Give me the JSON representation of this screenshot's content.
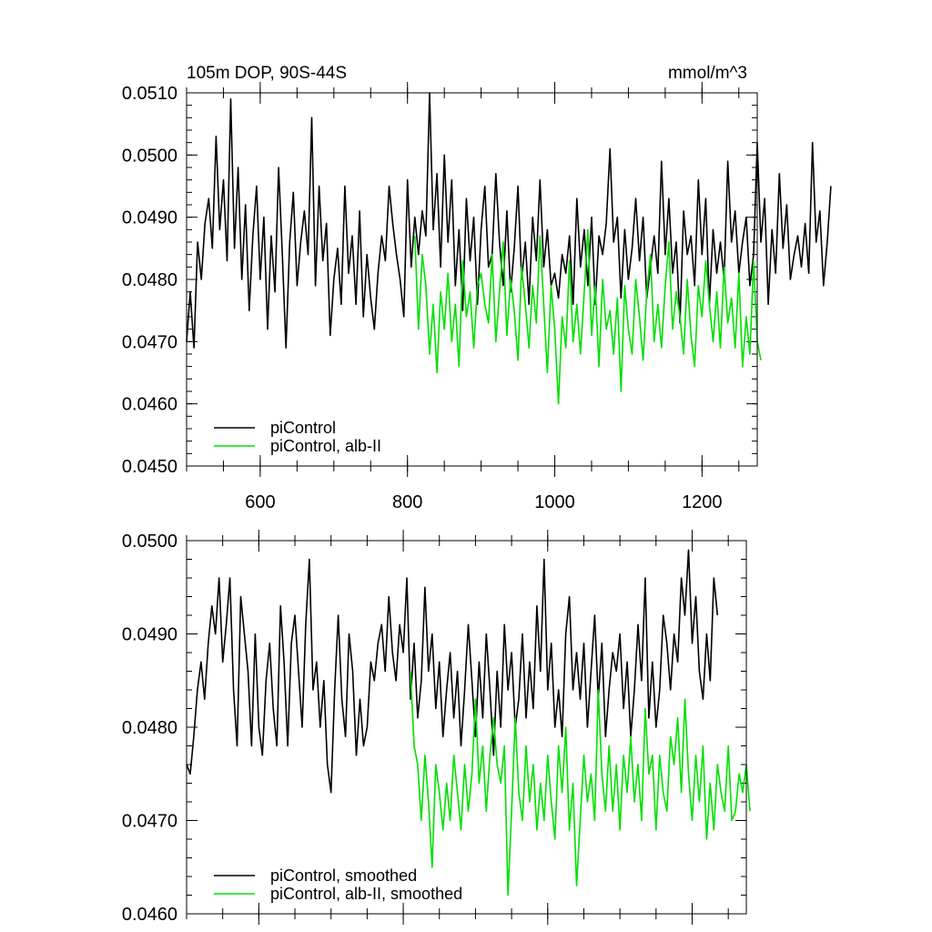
{
  "chart_data": [
    {
      "type": "line",
      "title": "105m DOP, 90S-44S",
      "units": "mmol/m^3",
      "xlim": [
        500,
        1275
      ],
      "ylim": [
        0.045,
        0.051
      ],
      "x_ticks": [
        600,
        800,
        1000,
        1200
      ],
      "x_tick_labels": [
        "600",
        "800",
        "1000",
        "1200"
      ],
      "y_ticks": [
        0.045,
        0.046,
        0.047,
        0.048,
        0.049,
        0.05,
        0.051
      ],
      "y_tick_labels": [
        "0.0450",
        "0.0460",
        "0.0470",
        "0.0480",
        "0.0490",
        "0.0500",
        "0.0510"
      ],
      "legend_position": "bottom-left",
      "series": [
        {
          "name": "piControl",
          "color": "#000000",
          "x_start": 500,
          "x_step": 5,
          "values": [
            0.047,
            0.0478,
            0.0469,
            0.0486,
            0.048,
            0.0489,
            0.0493,
            0.0485,
            0.0503,
            0.0488,
            0.0496,
            0.0483,
            0.0509,
            0.0485,
            0.0498,
            0.048,
            0.0492,
            0.0475,
            0.0487,
            0.0495,
            0.048,
            0.049,
            0.0472,
            0.0487,
            0.0478,
            0.0498,
            0.0484,
            0.0469,
            0.0486,
            0.0494,
            0.0479,
            0.0486,
            0.0491,
            0.0484,
            0.0506,
            0.0479,
            0.0495,
            0.0483,
            0.0489,
            0.0471,
            0.048,
            0.0485,
            0.0476,
            0.0495,
            0.0481,
            0.0487,
            0.0476,
            0.0491,
            0.0474,
            0.0484,
            0.0477,
            0.0472,
            0.0481,
            0.0487,
            0.0483,
            0.0495,
            0.0489,
            0.0484,
            0.048,
            0.0474,
            0.0496,
            0.0482,
            0.049,
            0.0484,
            0.0491,
            0.0487,
            0.051,
            0.0488,
            0.0497,
            0.0482,
            0.05,
            0.0486,
            0.0496,
            0.0479,
            0.0488,
            0.0475,
            0.0493,
            0.0483,
            0.049,
            0.0476,
            0.0488,
            0.0495,
            0.0482,
            0.0484,
            0.0497,
            0.0486,
            0.0479,
            0.0491,
            0.0478,
            0.0485,
            0.0495,
            0.048,
            0.0486,
            0.0476,
            0.049,
            0.0483,
            0.0496,
            0.0482,
            0.0488,
            0.0479,
            0.0481,
            0.0477,
            0.0484,
            0.0481,
            0.0487,
            0.0476,
            0.0493,
            0.0482,
            0.0488,
            0.0479,
            0.049,
            0.0476,
            0.0487,
            0.0484,
            0.0489,
            0.0501,
            0.0486,
            0.049,
            0.0477,
            0.0488,
            0.048,
            0.0485,
            0.0493,
            0.0483,
            0.049,
            0.0477,
            0.0482,
            0.0487,
            0.0481,
            0.0499,
            0.0484,
            0.0493,
            0.0481,
            0.0486,
            0.0473,
            0.0491,
            0.0484,
            0.0487,
            0.0479,
            0.0496,
            0.0484,
            0.0493,
            0.0476,
            0.0488,
            0.0481,
            0.0486,
            0.048,
            0.0499,
            0.0486,
            0.0491,
            0.0481,
            0.0486,
            0.049,
            0.0479,
            0.0484,
            0.0502,
            0.0486,
            0.0493,
            0.0476,
            0.0488,
            0.0481,
            0.0497,
            0.0485,
            0.0492,
            0.048,
            0.0484,
            0.0487,
            0.0482,
            0.0489,
            0.0481,
            0.0502,
            0.0486,
            0.0491,
            0.0479,
            0.0486,
            0.0495
          ]
        },
        {
          "name": "piControl, alb-II",
          "color": "#00e000",
          "x_start": 810,
          "x_step": 5,
          "values": [
            0.0487,
            0.0472,
            0.0484,
            0.0479,
            0.0468,
            0.0476,
            0.0465,
            0.0478,
            0.0472,
            0.0481,
            0.047,
            0.0476,
            0.0466,
            0.0483,
            0.0474,
            0.0478,
            0.0469,
            0.0479,
            0.0481,
            0.0476,
            0.0473,
            0.0484,
            0.047,
            0.0478,
            0.0486,
            0.0471,
            0.048,
            0.0475,
            0.0467,
            0.0482,
            0.0476,
            0.0469,
            0.0479,
            0.0473,
            0.0487,
            0.0476,
            0.0465,
            0.0479,
            0.0472,
            0.046,
            0.0474,
            0.0469,
            0.0483,
            0.047,
            0.0476,
            0.0468,
            0.0478,
            0.0488,
            0.0471,
            0.0479,
            0.0466,
            0.048,
            0.0472,
            0.0475,
            0.0468,
            0.0477,
            0.0462,
            0.0479,
            0.0472,
            0.0468,
            0.048,
            0.0474,
            0.0467,
            0.0478,
            0.0484,
            0.047,
            0.0476,
            0.0469,
            0.0479,
            0.0486,
            0.0472,
            0.0478,
            0.0474,
            0.0468,
            0.048,
            0.0471,
            0.0466,
            0.0479,
            0.0474,
            0.0483,
            0.0476,
            0.047,
            0.0478,
            0.0469,
            0.0482,
            0.0473,
            0.0477,
            0.0469,
            0.0481,
            0.0466,
            0.0474,
            0.0468,
            0.0483,
            0.047,
            0.0467
          ]
        }
      ]
    },
    {
      "type": "line",
      "xlim": [
        500,
        1275
      ],
      "ylim": [
        0.046,
        0.05
      ],
      "x_ticks": [
        600,
        800,
        1000,
        1200
      ],
      "y_ticks": [
        0.046,
        0.047,
        0.048,
        0.049,
        0.05
      ],
      "y_tick_labels": [
        "0.0460",
        "0.0470",
        "0.0480",
        "0.0490",
        "0.0500"
      ],
      "legend_position": "bottom-left",
      "series": [
        {
          "name": "piControl, smoothed",
          "color": "#000000",
          "x_start": 500,
          "x_step": 5,
          "values": [
            0.0476,
            0.0475,
            0.0479,
            0.0484,
            0.0487,
            0.0483,
            0.0489,
            0.0493,
            0.049,
            0.0496,
            0.0487,
            0.0491,
            0.0496,
            0.0484,
            0.0478,
            0.0494,
            0.049,
            0.0486,
            0.0478,
            0.049,
            0.048,
            0.0477,
            0.0485,
            0.0489,
            0.0482,
            0.0478,
            0.0493,
            0.0487,
            0.0478,
            0.0489,
            0.0492,
            0.0486,
            0.048,
            0.0491,
            0.0498,
            0.0484,
            0.0487,
            0.048,
            0.0485,
            0.0476,
            0.0473,
            0.0484,
            0.0492,
            0.0483,
            0.0479,
            0.049,
            0.0486,
            0.0477,
            0.0483,
            0.0478,
            0.048,
            0.0487,
            0.0485,
            0.0489,
            0.0491,
            0.0486,
            0.0494,
            0.0488,
            0.0485,
            0.0491,
            0.0488,
            0.0496,
            0.0483,
            0.0489,
            0.0481,
            0.0485,
            0.0495,
            0.0486,
            0.049,
            0.0482,
            0.0487,
            0.0479,
            0.0484,
            0.0488,
            0.0481,
            0.0486,
            0.0478,
            0.0484,
            0.0491,
            0.0485,
            0.0479,
            0.0487,
            0.0481,
            0.049,
            0.0484,
            0.0477,
            0.0486,
            0.048,
            0.0491,
            0.0484,
            0.0488,
            0.048,
            0.0483,
            0.049,
            0.0481,
            0.0487,
            0.0482,
            0.0493,
            0.0486,
            0.0498,
            0.0484,
            0.0489,
            0.048,
            0.0484,
            0.0479,
            0.049,
            0.0494,
            0.0484,
            0.0488,
            0.0483,
            0.0489,
            0.048,
            0.0486,
            0.0492,
            0.0483,
            0.0489,
            0.0479,
            0.0484,
            0.0488,
            0.0486,
            0.049,
            0.0482,
            0.0487,
            0.0479,
            0.0484,
            0.0491,
            0.0485,
            0.0496,
            0.0481,
            0.0487,
            0.048,
            0.0484,
            0.0492,
            0.0489,
            0.0484,
            0.049,
            0.0487,
            0.0496,
            0.0492,
            0.0499,
            0.0489,
            0.0494,
            0.0486,
            0.0483,
            0.049,
            0.0485,
            0.0496,
            0.0492
          ]
        },
        {
          "name": "piControl, alb-II, smoothed",
          "color": "#00e000",
          "x_start": 810,
          "x_step": 5,
          "values": [
            0.0486,
            0.0478,
            0.0476,
            0.047,
            0.0477,
            0.0472,
            0.0465,
            0.0476,
            0.0473,
            0.0469,
            0.0474,
            0.047,
            0.0477,
            0.0473,
            0.0469,
            0.0476,
            0.0471,
            0.0475,
            0.0483,
            0.0474,
            0.0478,
            0.0471,
            0.0477,
            0.0481,
            0.0476,
            0.0474,
            0.0478,
            0.0462,
            0.0471,
            0.0481,
            0.0473,
            0.047,
            0.0478,
            0.0472,
            0.0476,
            0.0469,
            0.0474,
            0.047,
            0.0477,
            0.0472,
            0.0468,
            0.0478,
            0.0473,
            0.048,
            0.0469,
            0.0474,
            0.0463,
            0.047,
            0.0477,
            0.0472,
            0.0475,
            0.047,
            0.0484,
            0.0475,
            0.0471,
            0.0478,
            0.0471,
            0.0476,
            0.0469,
            0.0477,
            0.0473,
            0.0479,
            0.0472,
            0.0476,
            0.047,
            0.0482,
            0.0475,
            0.0477,
            0.0469,
            0.0477,
            0.0473,
            0.0471,
            0.0479,
            0.0476,
            0.0481,
            0.0473,
            0.0483,
            0.0475,
            0.047,
            0.0477,
            0.0472,
            0.0478,
            0.0468,
            0.0474,
            0.0469,
            0.0476,
            0.0473,
            0.0471,
            0.0478,
            0.047,
            0.0471,
            0.0475,
            0.0473,
            0.0476,
            0.0471
          ]
        }
      ]
    }
  ]
}
